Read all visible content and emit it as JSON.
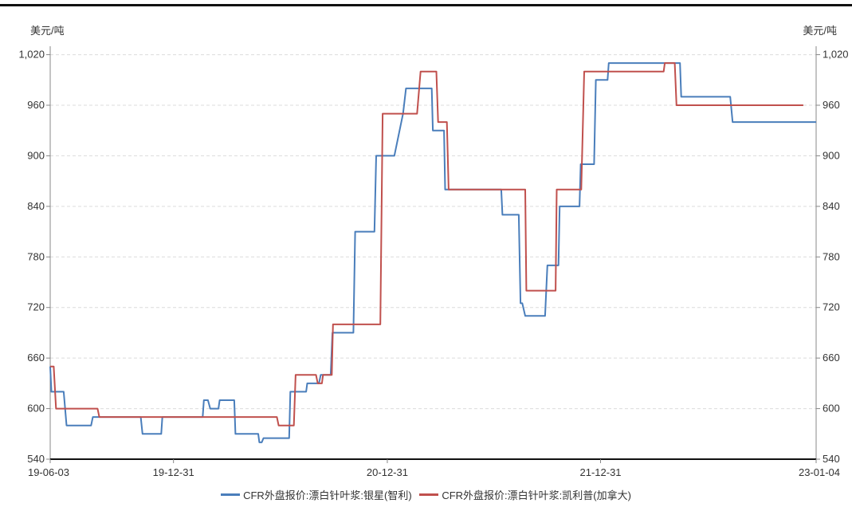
{
  "chart_data": {
    "type": "line",
    "unit_left": "美元/吨",
    "unit_right": "美元/吨",
    "ylim": [
      540,
      1030
    ],
    "yticks": [
      540,
      600,
      660,
      720,
      780,
      840,
      900,
      960,
      1020
    ],
    "ytick_labels": [
      "540",
      "600",
      "660",
      "720",
      "780",
      "840",
      "900",
      "960",
      "1,020"
    ],
    "xlim": [
      "2019-06-03",
      "2023-01-04"
    ],
    "xticks": [
      {
        "date": "2019-06-03",
        "label": "19-06-03"
      },
      {
        "date": "2019-12-31",
        "label": "19-12-31"
      },
      {
        "date": "2020-12-31",
        "label": "20-12-31"
      },
      {
        "date": "2021-12-31",
        "label": "21-12-31"
      },
      {
        "date": "2023-01-04",
        "label": "23-01-04"
      }
    ],
    "grid": true,
    "legend_position": "bottom",
    "series": [
      {
        "name": "CFR外盘报价:漂白针叶浆:银星(智利)",
        "color": "#4a7ebb",
        "points": [
          [
            "2019-06-03",
            650
          ],
          [
            "2019-06-05",
            620
          ],
          [
            "2019-06-26",
            620
          ],
          [
            "2019-07-01",
            580
          ],
          [
            "2019-08-12",
            580
          ],
          [
            "2019-08-15",
            590
          ],
          [
            "2019-11-05",
            590
          ],
          [
            "2019-11-08",
            570
          ],
          [
            "2019-12-10",
            570
          ],
          [
            "2019-12-12",
            590
          ],
          [
            "2020-02-19",
            590
          ],
          [
            "2020-02-21",
            610
          ],
          [
            "2020-02-28",
            610
          ],
          [
            "2020-03-03",
            600
          ],
          [
            "2020-03-17",
            600
          ],
          [
            "2020-03-19",
            610
          ],
          [
            "2020-04-13",
            610
          ],
          [
            "2020-04-15",
            570
          ],
          [
            "2020-05-24",
            570
          ],
          [
            "2020-05-26",
            560
          ],
          [
            "2020-05-30",
            560
          ],
          [
            "2020-06-02",
            565
          ],
          [
            "2020-07-16",
            565
          ],
          [
            "2020-07-18",
            620
          ],
          [
            "2020-08-14",
            620
          ],
          [
            "2020-08-16",
            630
          ],
          [
            "2020-09-05",
            630
          ],
          [
            "2020-09-08",
            640
          ],
          [
            "2020-09-25",
            640
          ],
          [
            "2020-09-28",
            690
          ],
          [
            "2020-11-03",
            690
          ],
          [
            "2020-11-06",
            810
          ],
          [
            "2020-12-09",
            810
          ],
          [
            "2020-12-12",
            900
          ],
          [
            "2021-01-12",
            900
          ],
          [
            "2021-01-27",
            950
          ],
          [
            "2021-02-01",
            980
          ],
          [
            "2021-03-17",
            980
          ],
          [
            "2021-03-19",
            930
          ],
          [
            "2021-04-07",
            930
          ],
          [
            "2021-04-09",
            860
          ],
          [
            "2021-07-14",
            860
          ],
          [
            "2021-07-16",
            830
          ],
          [
            "2021-08-13",
            830
          ],
          [
            "2021-08-16",
            725
          ],
          [
            "2021-08-19",
            725
          ],
          [
            "2021-08-24",
            710
          ],
          [
            "2021-09-27",
            710
          ],
          [
            "2021-10-01",
            770
          ],
          [
            "2021-10-20",
            770
          ],
          [
            "2021-10-22",
            840
          ],
          [
            "2021-11-25",
            840
          ],
          [
            "2021-11-27",
            890
          ],
          [
            "2021-12-20",
            890
          ],
          [
            "2021-12-23",
            990
          ],
          [
            "2022-01-12",
            990
          ],
          [
            "2022-01-14",
            1010
          ],
          [
            "2022-05-16",
            1010
          ],
          [
            "2022-05-18",
            970
          ],
          [
            "2022-08-10",
            970
          ],
          [
            "2022-08-14",
            940
          ],
          [
            "2023-01-04",
            940
          ]
        ]
      },
      {
        "name": "CFR外盘报价:漂白针叶浆:凯利普(加拿大)",
        "color": "#c0504d",
        "points": [
          [
            "2019-06-03",
            650
          ],
          [
            "2019-06-09",
            650
          ],
          [
            "2019-06-13",
            600
          ],
          [
            "2019-08-23",
            600
          ],
          [
            "2019-08-26",
            590
          ],
          [
            "2020-06-25",
            590
          ],
          [
            "2020-06-28",
            580
          ],
          [
            "2020-07-24",
            580
          ],
          [
            "2020-07-27",
            640
          ],
          [
            "2020-08-31",
            640
          ],
          [
            "2020-09-03",
            630
          ],
          [
            "2020-09-10",
            630
          ],
          [
            "2020-09-12",
            640
          ],
          [
            "2020-09-27",
            640
          ],
          [
            "2020-09-29",
            700
          ],
          [
            "2020-12-19",
            700
          ],
          [
            "2020-12-23",
            950
          ],
          [
            "2021-02-20",
            950
          ],
          [
            "2021-02-26",
            1000
          ],
          [
            "2021-03-25",
            1000
          ],
          [
            "2021-03-28",
            940
          ],
          [
            "2021-04-12",
            940
          ],
          [
            "2021-04-15",
            860
          ],
          [
            "2021-08-24",
            860
          ],
          [
            "2021-08-26",
            740
          ],
          [
            "2021-10-15",
            740
          ],
          [
            "2021-10-17",
            860
          ],
          [
            "2021-11-28",
            860
          ],
          [
            "2021-12-03",
            1000
          ],
          [
            "2022-04-18",
            1000
          ],
          [
            "2022-04-20",
            1010
          ],
          [
            "2022-05-07",
            1010
          ],
          [
            "2022-05-10",
            960
          ],
          [
            "2022-12-13",
            960
          ]
        ]
      }
    ]
  }
}
